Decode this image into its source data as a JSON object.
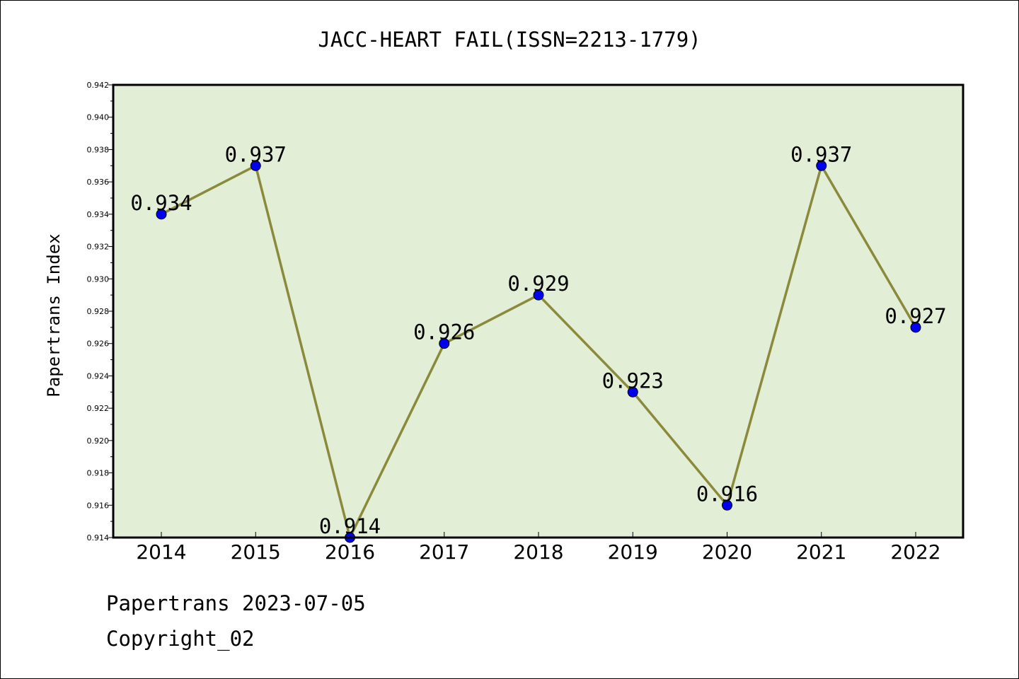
{
  "chart_data": {
    "type": "line",
    "title": "JACC-HEART FAIL(ISSN=2213-1779)",
    "xlabel": "",
    "ylabel": "Papertrans Index",
    "categories": [
      "2014",
      "2015",
      "2016",
      "2017",
      "2018",
      "2019",
      "2020",
      "2021",
      "2022"
    ],
    "series": [
      {
        "values": [
          0.934,
          0.937,
          0.914,
          0.926,
          0.929,
          0.923,
          0.916,
          0.937,
          0.927
        ]
      }
    ],
    "data_labels": [
      "0.934",
      "0.937",
      "0.914",
      "0.926",
      "0.929",
      "0.923",
      "0.916",
      "0.937",
      "0.927"
    ],
    "ylim": [
      0.914,
      0.942
    ],
    "yticks": [
      "0.914",
      "0.916",
      "0.918",
      "0.920",
      "0.922",
      "0.924",
      "0.926",
      "0.928",
      "0.930",
      "0.932",
      "0.934",
      "0.936",
      "0.938",
      "0.940",
      "0.942"
    ],
    "grid": false,
    "colors": {
      "plot_background": "#e2efd6",
      "line": "#8b8a3c",
      "marker": "#0000ee"
    }
  },
  "footer": {
    "date_text": "Papertrans 2023-07-05",
    "copyright_text": "Copyright_02"
  }
}
